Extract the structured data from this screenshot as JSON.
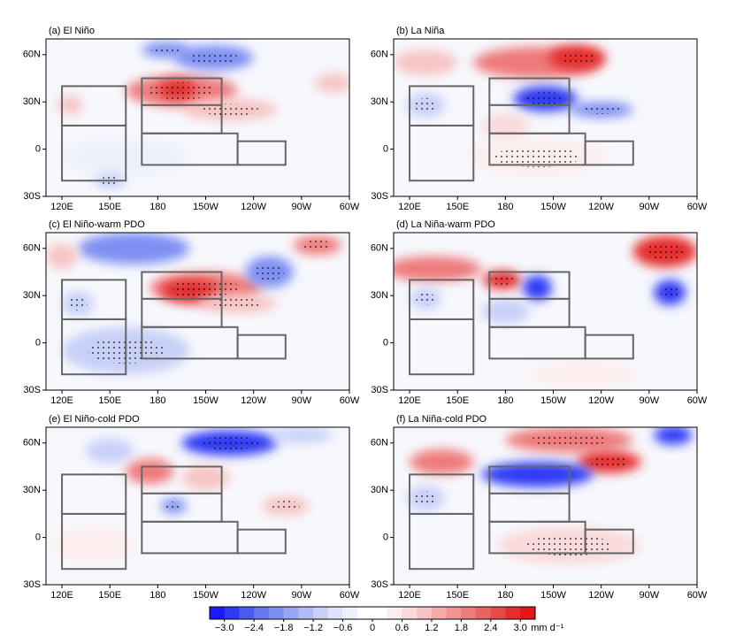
{
  "panels": [
    {
      "title": "(a) El Niño"
    },
    {
      "title": "(b) La Niña"
    },
    {
      "title": "(c) El Niño-warm PDO"
    },
    {
      "title": "(d) La Niña-warm PDO"
    },
    {
      "title": "(e) El Niño-cold PDO"
    },
    {
      "title": "(f) La Niña-cold PDO"
    }
  ],
  "lon_range": [
    110,
    300
  ],
  "lat_range": [
    -30,
    70
  ],
  "lon_ticks": [
    {
      "value": 120,
      "label": "120E"
    },
    {
      "value": 150,
      "label": "150E"
    },
    180,
    {
      "value": 210,
      "label": "150W"
    },
    {
      "value": 240,
      "label": "120W"
    },
    {
      "value": 270,
      "label": "90W"
    },
    {
      "value": 300,
      "label": "60W"
    }
  ],
  "lat_ticks": [
    {
      "value": 60,
      "label": "60N"
    },
    {
      "value": 30,
      "label": "30N"
    },
    0,
    {
      "value": -30,
      "label": "30S"
    }
  ],
  "colorbar": {
    "range": [
      -3.3,
      3.3
    ],
    "ticks": [
      {
        "value": -3.0,
        "label": "−3.0"
      },
      {
        "value": -2.4,
        "label": "−2.4"
      },
      {
        "value": -1.8,
        "label": "−1.8"
      },
      {
        "value": -1.2,
        "label": "−1.2"
      },
      {
        "value": -0.6,
        "label": "−0.6"
      },
      0,
      {
        "value": 0.6,
        "label": "0.6"
      },
      {
        "value": 1.2,
        "label": "1.2"
      },
      {
        "value": 1.8,
        "label": "1.8"
      },
      {
        "value": 2.4,
        "label": "2.4"
      },
      {
        "value": 3.0,
        "label": "3.0"
      }
    ],
    "colors": [
      "#1a1aff",
      "#2e3bf5",
      "#4a5cf0",
      "#6678f0",
      "#7d8ff2",
      "#98a6f4",
      "#b1bcf6",
      "#c8d0f8",
      "#dde3fa",
      "#eef1fc",
      "#ffffff",
      "#ffffff",
      "#fceeee",
      "#fadada",
      "#f7c4c4",
      "#f4abab",
      "#f19393",
      "#ee7a7a",
      "#eb6262",
      "#e84848",
      "#e62d2d",
      "#e61414"
    ],
    "unit": "mm d⁻¹"
  }
}
